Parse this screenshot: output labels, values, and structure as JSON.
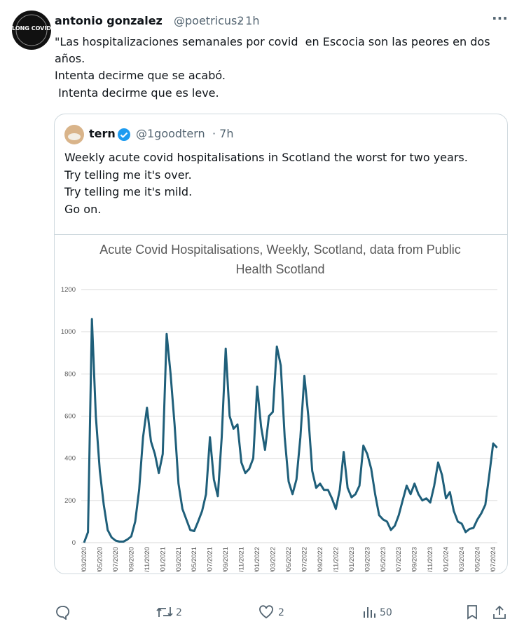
{
  "author": {
    "name": "antonio gonzalez",
    "handle": "@poetricus2",
    "time": "· 1h"
  },
  "avatar": {
    "label": "LONG COVID"
  },
  "tweet_text": [
    "\"Las hospitalizaciones semanales por covid  en Escocia son las peores en dos",
    "años.",
    "Intenta decirme que se acabó.",
    " Intenta decirme que es leve."
  ],
  "quote": {
    "name": "tern",
    "handle": "@1goodtern",
    "time": "· 7h",
    "text": [
      "Weekly acute covid hospitalisations in Scotland the worst for two years.",
      "Try telling me it's over.",
      "Try telling me it's mild.",
      "Go on."
    ]
  },
  "chart_data": {
    "type": "line",
    "title": "Acute Covid Hospitalisations, Weekly, Scotland, data from Public Health Scotland",
    "categories": [
      "01/03/2020",
      null,
      null,
      null,
      "01/05/2020",
      null,
      null,
      null,
      "01/07/2020",
      null,
      null,
      null,
      "01/09/2020",
      null,
      null,
      null,
      "01/11/2020",
      null,
      null,
      null,
      "01/01/2021",
      null,
      null,
      null,
      "01/03/2021",
      null,
      null,
      null,
      "01/05/2021",
      null,
      null,
      null,
      "01/07/2021",
      null,
      null,
      null,
      "01/09/2021",
      null,
      null,
      null,
      "01/11/2021",
      null,
      null,
      null,
      "01/01/2022",
      null,
      null,
      null,
      "01/03/2022",
      null,
      null,
      null,
      "01/05/2022",
      null,
      null,
      null,
      "01/07/2022",
      null,
      null,
      null,
      "01/09/2022",
      null,
      null,
      null,
      "01/11/2022",
      null,
      null,
      null,
      "01/01/2023",
      null,
      null,
      null,
      "01/03/2023",
      null,
      null,
      null,
      "01/05/2023",
      null,
      null,
      null,
      "01/07/2023",
      null,
      null,
      null,
      "01/09/2023",
      null,
      null,
      null,
      "01/11/2023",
      null,
      null,
      null,
      "01/01/2024",
      null,
      null,
      null,
      "01/03/2024",
      null,
      null,
      null,
      "01/05/2024",
      null,
      null,
      null,
      "01/07/2024",
      null
    ],
    "values": [
      0,
      50,
      1060,
      600,
      340,
      180,
      60,
      25,
      10,
      5,
      5,
      15,
      30,
      100,
      250,
      500,
      640,
      480,
      420,
      330,
      420,
      990,
      800,
      560,
      280,
      160,
      110,
      60,
      55,
      100,
      150,
      230,
      500,
      300,
      220,
      500,
      920,
      600,
      540,
      560,
      380,
      330,
      350,
      400,
      740,
      550,
      440,
      600,
      620,
      930,
      840,
      500,
      290,
      230,
      300,
      500,
      790,
      600,
      340,
      260,
      280,
      250,
      250,
      210,
      160,
      250,
      430,
      260,
      215,
      230,
      270,
      460,
      420,
      350,
      230,
      130,
      110,
      100,
      60,
      80,
      130,
      200,
      270,
      230,
      280,
      230,
      200,
      210,
      190,
      270,
      380,
      320,
      210,
      240,
      150,
      100,
      90,
      50,
      65,
      70,
      110,
      140,
      180,
      320,
      470,
      450
    ],
    "color": "#1f5f7a",
    "ylim": [
      0,
      1200
    ],
    "yticks": [
      0,
      200,
      400,
      600,
      800,
      1000,
      1200
    ],
    "grid": true
  },
  "footer": {
    "retweets": 2,
    "likes": 2,
    "views": 50
  }
}
